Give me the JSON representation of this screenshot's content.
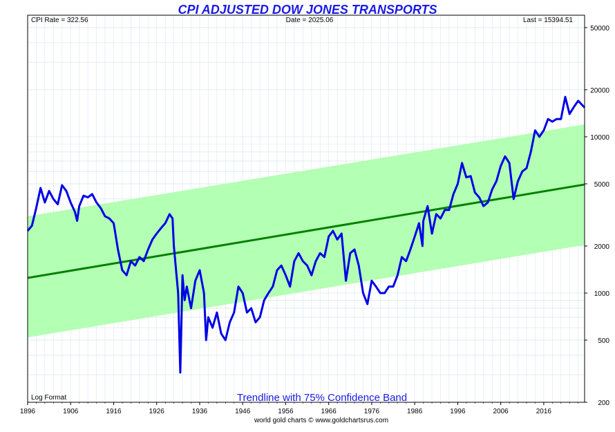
{
  "chart_data": {
    "type": "line",
    "title": "CPI ADJUSTED DOW JONES TRANSPORTS",
    "info_left": "CPI Rate = 322.56",
    "info_center": "Date = 2025.06",
    "info_right": "Last = 15394.51",
    "scale_label": "Log Format",
    "band_label": "Trendline with 75% Confidence Band",
    "credit": "world gold charts © www.goldchartsrus.com",
    "y_scale": "log",
    "xlim": [
      1896,
      2025.5
    ],
    "ylim": [
      200,
      60000
    ],
    "x_ticks": [
      1896,
      1906,
      1916,
      1926,
      1936,
      1946,
      1956,
      1966,
      1976,
      1986,
      1996,
      2006,
      2016
    ],
    "x_tick_labels": [
      "1896",
      "1906",
      "1916",
      "1926",
      "1936",
      "1946",
      "1956",
      "1966",
      "1976",
      "1986",
      "1996",
      "2006",
      "2016"
    ],
    "y_ticks": [
      200,
      500,
      1000,
      2000,
      5000,
      10000,
      20000,
      50000
    ],
    "y_tick_labels": [
      "200",
      "500",
      "1000",
      "2000",
      "5000",
      "10000",
      "20000",
      "50000"
    ],
    "grid": true,
    "colors": {
      "series": "#0000e6",
      "trend": "#008000",
      "band": "#b3ffb3",
      "title": "#1a1ae6",
      "grid": "#d8e6ee"
    },
    "trend": {
      "x": [
        1896,
        2025.5
      ],
      "y": [
        1250,
        4950
      ]
    },
    "band_upper": {
      "x": [
        1896,
        2025.5
      ],
      "y": [
        3100,
        12000
      ]
    },
    "band_lower": {
      "x": [
        1896,
        2025.5
      ],
      "y": [
        520,
        2030
      ]
    },
    "series": [
      {
        "x": [
          1896,
          1897,
          1898,
          1899,
          1900,
          1901,
          1902,
          1903,
          1904,
          1905,
          1906,
          1907,
          1907.5,
          1908,
          1909,
          1910,
          1911,
          1912,
          1913,
          1914,
          1915,
          1916,
          1917,
          1918,
          1919,
          1920,
          1921,
          1922,
          1923,
          1924,
          1925,
          1926,
          1927,
          1928,
          1929,
          1929.7,
          1930,
          1931,
          1931.5,
          1932,
          1932.5,
          1933,
          1934,
          1935,
          1936,
          1937,
          1937.5,
          1938,
          1939,
          1940,
          1941,
          1942,
          1943,
          1944,
          1945,
          1946,
          1947,
          1948,
          1949,
          1950,
          1951,
          1952,
          1953,
          1954,
          1955,
          1956,
          1957,
          1958,
          1959,
          1960,
          1961,
          1962,
          1963,
          1964,
          1965,
          1966,
          1967,
          1968,
          1969,
          1970,
          1971,
          1972,
          1973,
          1974,
          1975,
          1976,
          1977,
          1978,
          1979,
          1980,
          1981,
          1982,
          1983,
          1984,
          1985,
          1986,
          1987,
          1987.8,
          1988,
          1989,
          1990,
          1991,
          1992,
          1993,
          1994,
          1995,
          1996,
          1997,
          1998,
          1999,
          2000,
          2001,
          2002,
          2003,
          2004,
          2005,
          2006,
          2007,
          2008,
          2009,
          2010,
          2011,
          2012,
          2013,
          2014,
          2015,
          2016,
          2017,
          2018,
          2019,
          2020,
          2021,
          2022,
          2023,
          2024,
          2025.5
        ],
        "y": [
          2500,
          2700,
          3500,
          4700,
          3800,
          4500,
          4000,
          3700,
          4900,
          4500,
          3800,
          3300,
          2900,
          3600,
          4200,
          4100,
          4300,
          3800,
          3500,
          3100,
          3000,
          2800,
          1900,
          1400,
          1300,
          1600,
          1500,
          1700,
          1600,
          1900,
          2200,
          2400,
          2600,
          2800,
          3200,
          3000,
          2000,
          1000,
          310,
          1300,
          900,
          1100,
          800,
          1200,
          1400,
          1000,
          500,
          700,
          600,
          750,
          550,
          500,
          650,
          750,
          1100,
          1000,
          750,
          800,
          650,
          700,
          900,
          1000,
          1100,
          1400,
          1500,
          1300,
          1100,
          1600,
          1800,
          1600,
          1500,
          1300,
          1600,
          1800,
          1700,
          2300,
          2500,
          2200,
          2400,
          1200,
          1800,
          1900,
          1500,
          1000,
          850,
          1200,
          1100,
          1000,
          1000,
          1100,
          1100,
          1300,
          1700,
          1600,
          1900,
          2300,
          2800,
          2000,
          2900,
          3600,
          2400,
          3200,
          3000,
          3400,
          3400,
          4300,
          5000,
          6800,
          5500,
          5600,
          4400,
          4100,
          3600,
          3800,
          4600,
          5200,
          6500,
          7500,
          6800,
          4000,
          5200,
          6000,
          6300,
          8000,
          11000,
          10000,
          11000,
          13000,
          12500,
          13000,
          13000,
          18000,
          14000,
          15500,
          17000,
          15394.51
        ]
      }
    ]
  }
}
